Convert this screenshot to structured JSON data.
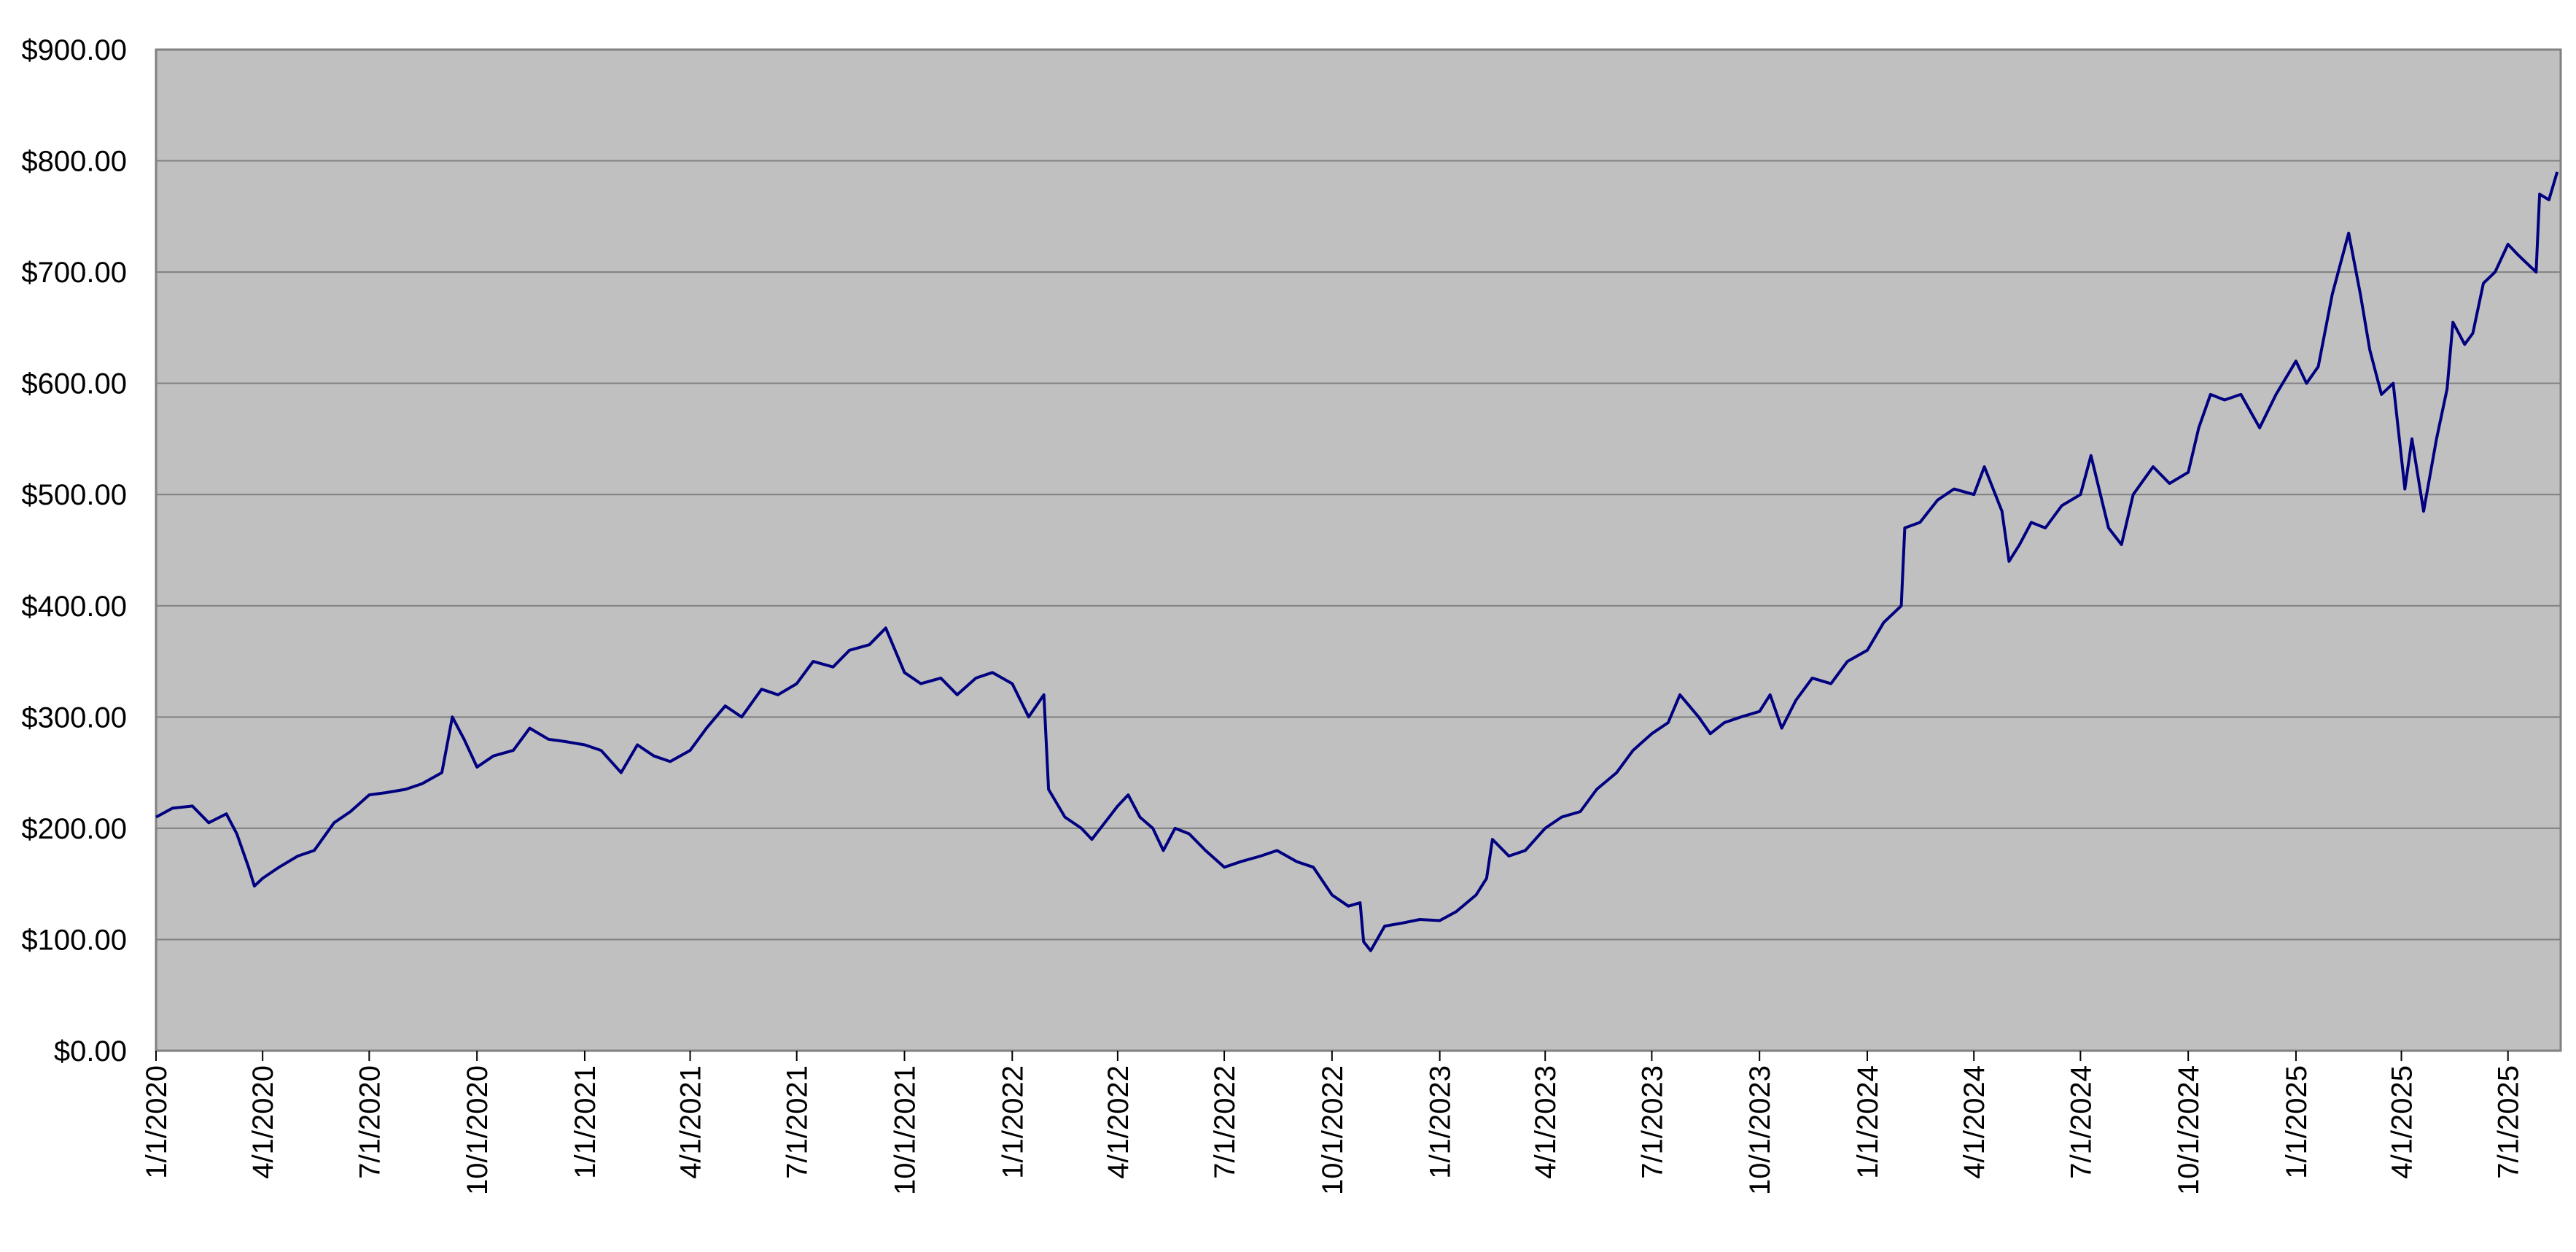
{
  "chart_data": {
    "type": "line",
    "color": "#000080",
    "grid": true,
    "x": [
      "1/1/2020",
      "1/15/2020",
      "2/1/2020",
      "2/15/2020",
      "3/1/2020",
      "3/10/2020",
      "3/20/2020",
      "3/25/2020",
      "4/1/2020",
      "4/15/2020",
      "5/1/2020",
      "5/15/2020",
      "6/1/2020",
      "6/15/2020",
      "7/1/2020",
      "7/15/2020",
      "8/1/2020",
      "8/15/2020",
      "9/1/2020",
      "9/10/2020",
      "9/20/2020",
      "10/1/2020",
      "10/15/2020",
      "11/1/2020",
      "11/15/2020",
      "12/1/2020",
      "12/15/2020",
      "1/1/2021",
      "1/15/2021",
      "2/1/2021",
      "2/15/2021",
      "3/1/2021",
      "3/15/2021",
      "4/1/2021",
      "4/15/2021",
      "5/1/2021",
      "5/15/2021",
      "6/1/2021",
      "6/15/2021",
      "7/1/2021",
      "7/15/2021",
      "8/1/2021",
      "8/15/2021",
      "9/1/2021",
      "9/15/2021",
      "10/1/2021",
      "10/15/2021",
      "11/1/2021",
      "11/15/2021",
      "12/1/2021",
      "12/15/2021",
      "1/1/2022",
      "1/15/2022",
      "1/28/2022",
      "2/1/2022",
      "2/15/2022",
      "3/1/2022",
      "3/10/2022",
      "4/1/2022",
      "4/10/2022",
      "4/20/2022",
      "5/1/2022",
      "5/10/2022",
      "5/20/2022",
      "6/1/2022",
      "6/15/2022",
      "7/1/2022",
      "7/15/2022",
      "8/1/2022",
      "8/15/2022",
      "9/1/2022",
      "9/15/2022",
      "10/1/2022",
      "10/15/2022",
      "10/25/2022",
      "10/28/2022",
      "11/3/2022",
      "11/15/2022",
      "12/1/2022",
      "12/15/2022",
      "1/1/2023",
      "1/15/2023",
      "2/1/2023",
      "2/10/2023",
      "2/15/2023",
      "3/1/2023",
      "3/15/2023",
      "4/1/2023",
      "4/15/2023",
      "5/1/2023",
      "5/15/2023",
      "6/1/2023",
      "6/15/2023",
      "7/1/2023",
      "7/15/2023",
      "7/25/2023",
      "8/10/2023",
      "8/20/2023",
      "9/1/2023",
      "9/15/2023",
      "10/1/2023",
      "10/10/2023",
      "10/20/2023",
      "11/1/2023",
      "11/15/2023",
      "12/1/2023",
      "12/15/2023",
      "1/1/2024",
      "1/15/2024",
      "1/30/2024",
      "2/2/2024",
      "2/15/2024",
      "3/1/2024",
      "3/15/2024",
      "4/1/2024",
      "4/10/2024",
      "4/25/2024",
      "5/1/2024",
      "5/10/2024",
      "5/20/2024",
      "6/1/2024",
      "6/15/2024",
      "7/1/2024",
      "7/10/2024",
      "7/25/2024",
      "8/5/2024",
      "8/15/2024",
      "9/1/2024",
      "9/15/2024",
      "10/1/2024",
      "10/10/2024",
      "10/20/2024",
      "11/1/2024",
      "11/15/2024",
      "12/1/2024",
      "12/15/2024",
      "1/1/2025",
      "1/10/2025",
      "1/20/2025",
      "2/1/2025",
      "2/15/2025",
      "2/25/2025",
      "3/5/2025",
      "3/15/2025",
      "3/25/2025",
      "4/4/2025",
      "4/10/2025",
      "4/20/2025",
      "5/1/2025",
      "5/10/2025",
      "5/15/2025",
      "5/25/2025",
      "6/1/2025",
      "6/10/2025",
      "6/20/2025",
      "7/1/2025",
      "7/10/2025",
      "7/20/2025",
      "7/25/2025",
      "7/28/2025",
      "8/5/2025",
      "8/12/2025"
    ],
    "values": [
      210,
      218,
      220,
      205,
      213,
      195,
      165,
      148,
      155,
      165,
      175,
      180,
      205,
      215,
      230,
      232,
      235,
      240,
      250,
      300,
      280,
      255,
      265,
      270,
      290,
      280,
      278,
      275,
      270,
      250,
      275,
      265,
      260,
      270,
      290,
      310,
      300,
      325,
      320,
      330,
      350,
      345,
      360,
      365,
      380,
      340,
      330,
      335,
      320,
      335,
      340,
      330,
      300,
      320,
      235,
      210,
      200,
      190,
      220,
      230,
      210,
      200,
      180,
      200,
      195,
      180,
      165,
      170,
      175,
      180,
      170,
      165,
      140,
      130,
      133,
      98,
      90,
      112,
      115,
      118,
      117,
      125,
      140,
      155,
      190,
      175,
      180,
      200,
      210,
      215,
      235,
      250,
      270,
      285,
      295,
      320,
      300,
      285,
      295,
      300,
      305,
      320,
      290,
      315,
      335,
      330,
      350,
      360,
      385,
      400,
      470,
      475,
      495,
      505,
      500,
      525,
      485,
      440,
      455,
      475,
      470,
      490,
      500,
      535,
      470,
      455,
      500,
      525,
      510,
      520,
      560,
      590,
      585,
      590,
      560,
      590,
      620,
      600,
      615,
      680,
      735,
      680,
      630,
      590,
      600,
      505,
      550,
      485,
      550,
      595,
      655,
      635,
      645,
      690,
      700,
      725,
      715,
      705,
      700,
      770,
      765,
      790
    ],
    "xlim": [
      "1/1/2020",
      "8/15/2025"
    ],
    "xticks": [
      "1/1/2020",
      "4/1/2020",
      "7/1/2020",
      "10/1/2020",
      "1/1/2021",
      "4/1/2021",
      "7/1/2021",
      "10/1/2021",
      "1/1/2022",
      "4/1/2022",
      "7/1/2022",
      "10/1/2022",
      "1/1/2023",
      "4/1/2023",
      "7/1/2023",
      "10/1/2023",
      "1/1/2024",
      "4/1/2024",
      "7/1/2024",
      "10/1/2024",
      "1/1/2025",
      "4/1/2025",
      "7/1/2025"
    ],
    "ylim": [
      0,
      900
    ],
    "yticks": [
      {
        "value": 0,
        "label": "$0.00"
      },
      {
        "value": 100,
        "label": "$100.00"
      },
      {
        "value": 200,
        "label": "$200.00"
      },
      {
        "value": 300,
        "label": "$300.00"
      },
      {
        "value": 400,
        "label": "$400.00"
      },
      {
        "value": 500,
        "label": "$500.00"
      },
      {
        "value": 600,
        "label": "$600.00"
      },
      {
        "value": 700,
        "label": "$700.00"
      },
      {
        "value": 800,
        "label": "$800.00"
      },
      {
        "value": 900,
        "label": "$900.00"
      }
    ]
  }
}
